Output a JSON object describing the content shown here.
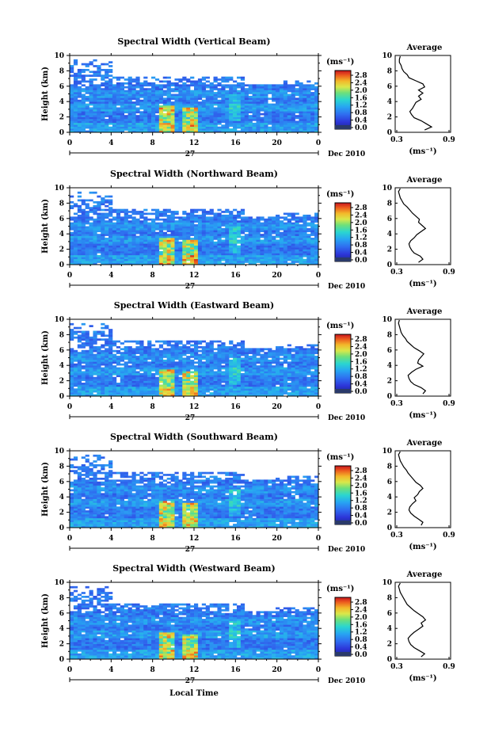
{
  "figure": {
    "xlabel": "Local Time",
    "date_label": "Dec 2010",
    "day_label": "27",
    "ylabel": "Height (km)",
    "colorbar_unit": "(ms⁻¹)",
    "colorbar_ticks": [
      "0.0",
      "0.4",
      "0.8",
      "1.2",
      "1.6",
      "2.0",
      "2.4",
      "2.8"
    ],
    "x_ticks": [
      "0",
      "4",
      "8",
      "12",
      "16",
      "20",
      "0"
    ],
    "y_ticks": [
      "0",
      "2",
      "4",
      "6",
      "8",
      "10"
    ],
    "profile_title": "Average",
    "profile_xlabel": "(ms⁻¹)",
    "profile_x_ticks": [
      "0.3",
      "0.9"
    ],
    "profile_y_ticks": [
      "0",
      "2",
      "4",
      "6",
      "8",
      "10"
    ]
  },
  "chart_data": [
    {
      "type": "heatmap",
      "title": "Spectral Width (Vertical Beam)",
      "xlabel": "Local Time",
      "ylabel": "Height (km)",
      "xlim": [
        0,
        24
      ],
      "ylim": [
        0,
        10
      ],
      "zlim": [
        0.0,
        2.8
      ],
      "colorbar_label": "(ms⁻¹)",
      "profile": {
        "title": "Average",
        "xlim": [
          0.3,
          0.9
        ],
        "heights": [
          0.3,
          0.7,
          1.1,
          1.5,
          1.9,
          2.3,
          2.7,
          3.1,
          3.5,
          3.9,
          4.3,
          4.7,
          5.1,
          5.5,
          5.9,
          6.3,
          6.7,
          7.1,
          7.5,
          7.9,
          8.3,
          8.7,
          9.1,
          9.5,
          9.9
        ],
        "values": [
          0.62,
          0.7,
          0.64,
          0.58,
          0.5,
          0.47,
          0.45,
          0.48,
          0.5,
          0.52,
          0.58,
          0.55,
          0.6,
          0.55,
          0.62,
          0.6,
          0.52,
          0.44,
          0.42,
          0.38,
          0.36,
          0.35,
          0.33,
          0.33,
          0.34
        ]
      }
    },
    {
      "type": "heatmap",
      "title": "Spectral Width (Northward Beam)",
      "xlabel": "Local Time",
      "ylabel": "Height (km)",
      "xlim": [
        0,
        24
      ],
      "ylim": [
        0,
        10
      ],
      "zlim": [
        0.0,
        2.8
      ],
      "colorbar_label": "(ms⁻¹)",
      "profile": {
        "title": "Average",
        "xlim": [
          0.3,
          0.9
        ],
        "heights": [
          0.3,
          0.7,
          1.1,
          1.5,
          1.9,
          2.3,
          2.7,
          3.1,
          3.5,
          3.9,
          4.3,
          4.7,
          5.1,
          5.5,
          5.9,
          6.3,
          6.7,
          7.1,
          7.5,
          7.9,
          8.3,
          8.7,
          9.1,
          9.5,
          9.9
        ],
        "values": [
          0.55,
          0.6,
          0.57,
          0.5,
          0.47,
          0.45,
          0.44,
          0.46,
          0.5,
          0.53,
          0.58,
          0.63,
          0.59,
          0.55,
          0.56,
          0.52,
          0.48,
          0.45,
          0.42,
          0.38,
          0.36,
          0.34,
          0.33,
          0.32,
          0.34
        ]
      }
    },
    {
      "type": "heatmap",
      "title": "Spectral Width (Eastward Beam)",
      "xlabel": "Local Time",
      "ylabel": "Height (km)",
      "xlim": [
        0,
        24
      ],
      "ylim": [
        0,
        10
      ],
      "zlim": [
        0.0,
        2.8
      ],
      "colorbar_label": "(ms⁻¹)",
      "profile": {
        "title": "Average",
        "xlim": [
          0.3,
          0.9
        ],
        "heights": [
          0.3,
          0.7,
          1.1,
          1.5,
          1.9,
          2.3,
          2.7,
          3.1,
          3.5,
          3.9,
          4.3,
          4.7,
          5.1,
          5.5,
          5.9,
          6.3,
          6.7,
          7.1,
          7.5,
          7.9,
          8.3,
          8.7,
          9.1,
          9.5,
          9.9
        ],
        "values": [
          0.6,
          0.63,
          0.58,
          0.5,
          0.46,
          0.44,
          0.43,
          0.47,
          0.52,
          0.6,
          0.54,
          0.55,
          0.58,
          0.61,
          0.56,
          0.5,
          0.46,
          0.42,
          0.4,
          0.37,
          0.35,
          0.34,
          0.33,
          0.32,
          0.33
        ]
      }
    },
    {
      "type": "heatmap",
      "title": "Spectral Width (Southward Beam)",
      "xlabel": "Local Time",
      "ylabel": "Height (km)",
      "xlim": [
        0,
        24
      ],
      "ylim": [
        0,
        10
      ],
      "zlim": [
        0.0,
        2.8
      ],
      "colorbar_label": "(ms⁻¹)",
      "profile": {
        "title": "Average",
        "xlim": [
          0.3,
          0.9
        ],
        "heights": [
          0.3,
          0.7,
          1.1,
          1.5,
          1.9,
          2.3,
          2.7,
          3.1,
          3.5,
          3.9,
          4.3,
          4.7,
          5.1,
          5.5,
          5.9,
          6.3,
          6.7,
          7.1,
          7.5,
          7.9,
          8.3,
          8.7,
          9.1,
          9.5,
          9.9
        ],
        "values": [
          0.58,
          0.6,
          0.55,
          0.5,
          0.46,
          0.44,
          0.45,
          0.48,
          0.52,
          0.5,
          0.54,
          0.56,
          0.6,
          0.57,
          0.52,
          0.49,
          0.46,
          0.43,
          0.41,
          0.38,
          0.36,
          0.34,
          0.33,
          0.32,
          0.34
        ]
      }
    },
    {
      "type": "heatmap",
      "title": "Spectral Width (Westward Beam)",
      "xlabel": "Local Time",
      "ylabel": "Height (km)",
      "xlim": [
        0,
        24
      ],
      "ylim": [
        0,
        10
      ],
      "zlim": [
        0.0,
        2.8
      ],
      "colorbar_label": "(ms⁻¹)",
      "profile": {
        "title": "Average",
        "xlim": [
          0.3,
          0.9
        ],
        "heights": [
          0.3,
          0.7,
          1.1,
          1.5,
          1.9,
          2.3,
          2.7,
          3.1,
          3.5,
          3.9,
          4.3,
          4.7,
          5.1,
          5.5,
          5.9,
          6.3,
          6.7,
          7.1,
          7.5,
          7.9,
          8.3,
          8.7,
          9.1,
          9.5,
          9.9
        ],
        "values": [
          0.58,
          0.62,
          0.56,
          0.5,
          0.46,
          0.44,
          0.43,
          0.46,
          0.5,
          0.55,
          0.6,
          0.58,
          0.63,
          0.6,
          0.55,
          0.5,
          0.46,
          0.42,
          0.4,
          0.38,
          0.36,
          0.34,
          0.33,
          0.32,
          0.34
        ]
      }
    }
  ]
}
